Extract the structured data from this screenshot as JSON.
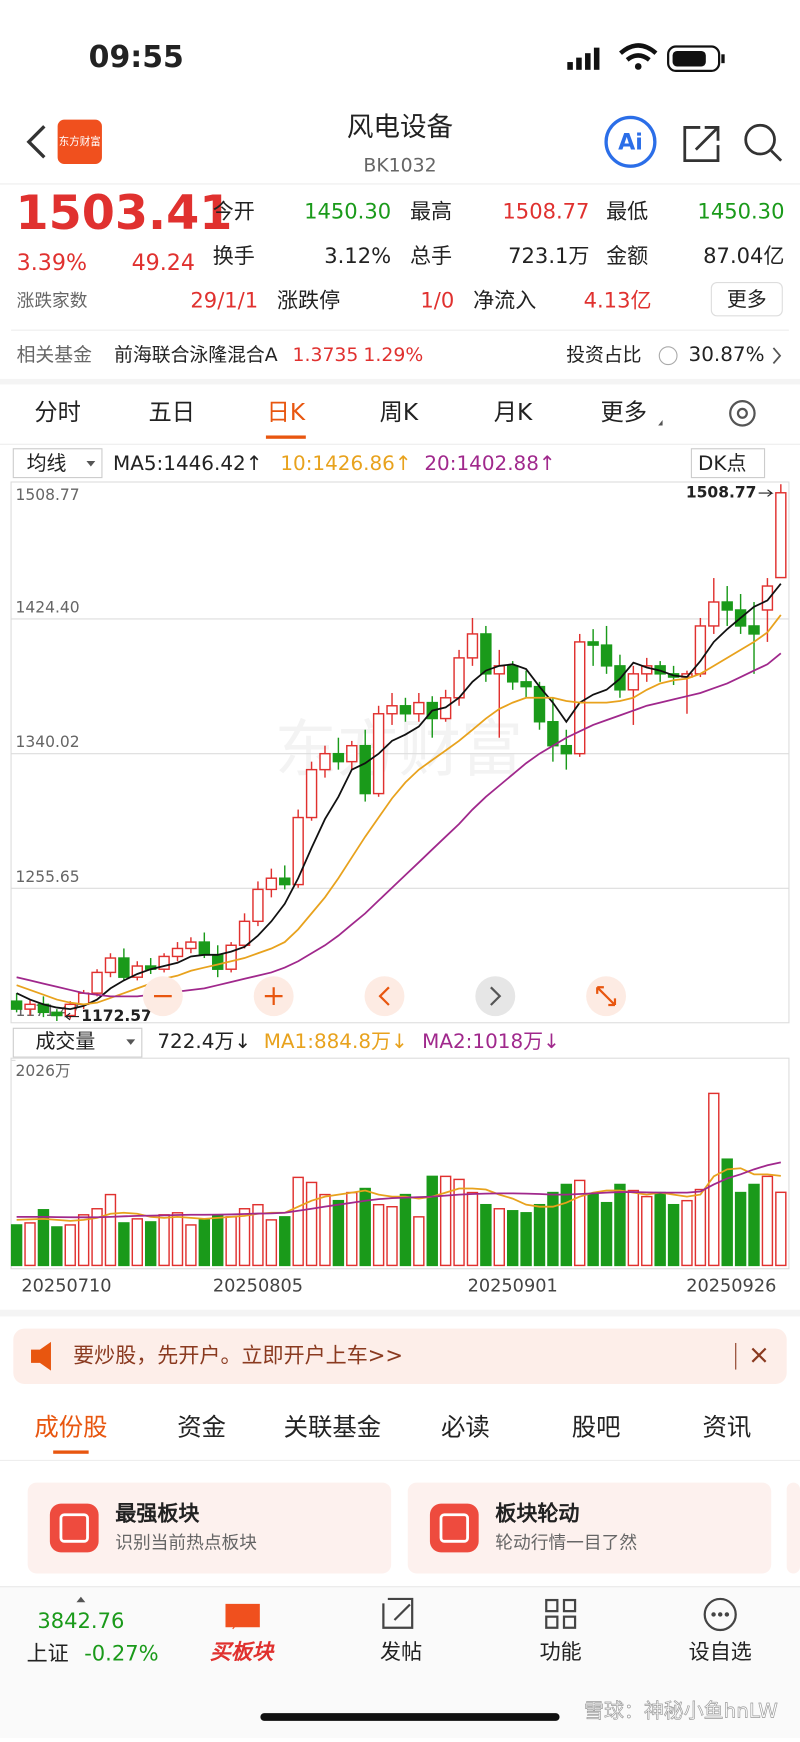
{
  "status_bar": {
    "time": "09:55"
  },
  "header": {
    "logo": "东方财富",
    "title": "风电设备",
    "code": "BK1032",
    "ai": "Ai"
  },
  "quote": {
    "price": "1503.41",
    "change_pct": "3.39%",
    "change": "49.24",
    "fields": [
      {
        "label": "今开",
        "value": "1450.30"
      },
      {
        "label": "最高",
        "value": "1508.77"
      },
      {
        "label": "最低",
        "value": "1450.30"
      },
      {
        "label": "换手",
        "value": "3.12%"
      },
      {
        "label": "总手",
        "value": "723.1万"
      },
      {
        "label": "金额",
        "value": "87.04亿"
      }
    ],
    "breadth_label": "涨跌家数",
    "breadth": "29/1/1",
    "limit_label": "涨跌停",
    "limit": "1/0",
    "flow_label": "净流入",
    "flow": "4.13亿",
    "more": "更多"
  },
  "fund": {
    "label": "相关基金",
    "name": "前海联合泳隆混合A",
    "nav": "1.3735",
    "pct": "1.29%",
    "ratio_label": "投资占比",
    "ratio": "30.87%"
  },
  "period_tabs": [
    "分时",
    "五日",
    "日K",
    "周K",
    "月K",
    "更多"
  ],
  "chart_data": [
    {
      "type": "candlestick",
      "selector": "均线",
      "indicator": "DK点",
      "ma_labels": [
        "MA5:1446.42↑",
        "10:1426.86↑",
        "20:1402.88↑"
      ],
      "categories": [
        "20250710",
        null,
        null,
        null,
        null,
        null,
        null,
        null,
        null,
        null,
        null,
        null,
        null,
        null,
        null,
        null,
        null,
        null,
        "20250805",
        null,
        null,
        null,
        null,
        null,
        null,
        null,
        null,
        null,
        null,
        null,
        null,
        null,
        null,
        null,
        null,
        null,
        null,
        "20250901",
        null,
        null,
        null,
        null,
        null,
        null,
        null,
        null,
        null,
        null,
        null,
        null,
        null,
        null,
        null,
        null,
        null,
        null,
        "20250926",
        null
      ],
      "candles": [
        [
          1185,
          1190,
          1178,
          1180
        ],
        [
          1180,
          1186,
          1176,
          1183
        ],
        [
          1183,
          1188,
          1175,
          1178
        ],
        [
          1178,
          1180,
          1172.57,
          1176
        ],
        [
          1176,
          1185,
          1174,
          1183
        ],
        [
          1183,
          1192,
          1180,
          1190
        ],
        [
          1190,
          1205,
          1188,
          1203
        ],
        [
          1203,
          1215,
          1200,
          1212
        ],
        [
          1212,
          1218,
          1198,
          1200
        ],
        [
          1200,
          1210,
          1198,
          1207
        ],
        [
          1207,
          1212,
          1202,
          1205
        ],
        [
          1205,
          1215,
          1203,
          1213
        ],
        [
          1213,
          1222,
          1210,
          1218
        ],
        [
          1218,
          1225,
          1215,
          1222
        ],
        [
          1222,
          1228,
          1212,
          1214
        ],
        [
          1214,
          1220,
          1200,
          1205
        ],
        [
          1205,
          1222,
          1203,
          1220
        ],
        [
          1220,
          1240,
          1218,
          1235
        ],
        [
          1235,
          1260,
          1232,
          1255
        ],
        [
          1255,
          1268,
          1250,
          1262
        ],
        [
          1262,
          1270,
          1255,
          1258
        ],
        [
          1258,
          1305,
          1256,
          1300
        ],
        [
          1300,
          1335,
          1298,
          1330
        ],
        [
          1330,
          1345,
          1325,
          1340
        ],
        [
          1340,
          1350,
          1330,
          1335
        ],
        [
          1335,
          1348,
          1330,
          1345
        ],
        [
          1345,
          1355,
          1310,
          1315
        ],
        [
          1315,
          1370,
          1313,
          1365
        ],
        [
          1365,
          1378,
          1358,
          1370
        ],
        [
          1370,
          1375,
          1360,
          1365
        ],
        [
          1365,
          1378,
          1360,
          1372
        ],
        [
          1372,
          1376,
          1350,
          1362
        ],
        [
          1362,
          1380,
          1360,
          1375
        ],
        [
          1375,
          1405,
          1370,
          1400
        ],
        [
          1400,
          1425,
          1395,
          1415
        ],
        [
          1415,
          1420,
          1385,
          1390
        ],
        [
          1390,
          1405,
          1350,
          1395
        ],
        [
          1395,
          1398,
          1380,
          1385
        ],
        [
          1385,
          1392,
          1375,
          1382
        ],
        [
          1382,
          1385,
          1355,
          1360
        ],
        [
          1360,
          1375,
          1335,
          1345
        ],
        [
          1345,
          1355,
          1330,
          1340
        ],
        [
          1340,
          1415,
          1338,
          1410
        ],
        [
          1410,
          1418,
          1395,
          1408
        ],
        [
          1408,
          1420,
          1390,
          1395
        ],
        [
          1395,
          1402,
          1375,
          1380
        ],
        [
          1380,
          1395,
          1358,
          1390
        ],
        [
          1390,
          1400,
          1385,
          1395
        ],
        [
          1395,
          1398,
          1385,
          1390
        ],
        [
          1390,
          1395,
          1383,
          1388
        ],
        [
          1388,
          1392,
          1365,
          1390
        ],
        [
          1390,
          1425,
          1388,
          1420
        ],
        [
          1420,
          1450,
          1415,
          1435
        ],
        [
          1435,
          1445,
          1420,
          1430
        ],
        [
          1430,
          1440,
          1415,
          1420
        ],
        [
          1420,
          1435,
          1390,
          1415
        ],
        [
          1430,
          1450,
          1410,
          1445
        ],
        [
          1450.3,
          1508.77,
          1450.3,
          1503.41
        ]
      ],
      "series": [
        {
          "name": "MA5",
          "color": "#111111",
          "values": [
            1190,
            1186,
            1183,
            1181,
            1180,
            1182,
            1186,
            1193,
            1198,
            1202,
            1205,
            1207,
            1209,
            1213,
            1214,
            1214,
            1216,
            1219,
            1226,
            1235,
            1246,
            1262,
            1281,
            1299,
            1313,
            1330,
            1334,
            1340,
            1348,
            1352,
            1357,
            1367,
            1369,
            1375,
            1385,
            1392,
            1395,
            1396,
            1393,
            1382,
            1372,
            1360,
            1372,
            1377,
            1380,
            1387,
            1397,
            1394,
            1392,
            1389,
            1388,
            1398,
            1410,
            1418,
            1425,
            1432,
            1436,
            1446.42
          ]
        },
        {
          "name": "MA10",
          "color": "#e8a21d",
          "values": [
            1195,
            1192,
            1189,
            1186,
            1184,
            1183,
            1184,
            1187,
            1190,
            1193,
            1196,
            1199,
            1201,
            1204,
            1206,
            1208,
            1210,
            1212,
            1215,
            1218,
            1222,
            1230,
            1240,
            1250,
            1262,
            1275,
            1288,
            1300,
            1312,
            1322,
            1330,
            1336,
            1342,
            1348,
            1355,
            1362,
            1368,
            1372,
            1375,
            1375,
            1375,
            1373,
            1372,
            1372,
            1372,
            1373,
            1375,
            1380,
            1384,
            1386,
            1387,
            1390,
            1395,
            1400,
            1405,
            1410,
            1416,
            1426.86
          ]
        },
        {
          "name": "MA20",
          "color": "#a0288c",
          "values": [
            1200,
            1198,
            1196,
            1194,
            1192,
            1190,
            1189,
            1188,
            1188,
            1188,
            1189,
            1190,
            1191,
            1192,
            1193,
            1195,
            1197,
            1199,
            1201,
            1203,
            1206,
            1210,
            1215,
            1220,
            1226,
            1233,
            1240,
            1248,
            1256,
            1264,
            1272,
            1280,
            1288,
            1296,
            1305,
            1313,
            1320,
            1327,
            1334,
            1340,
            1345,
            1350,
            1354,
            1358,
            1361,
            1364,
            1367,
            1370,
            1372,
            1374,
            1376,
            1378,
            1381,
            1384,
            1388,
            1392,
            1396,
            1402.88
          ]
        }
      ],
      "up_color": "#e0312f",
      "down_color": "#1a9a1a",
      "ylim": [
        1171.47,
        1508.77
      ],
      "yticks": [
        1171.47,
        1255.65,
        1340.02,
        {
          "value": 1424.4,
          "label": "1424.40"
        },
        1508.77
      ],
      "grid": true,
      "max_label": 1508.77,
      "min_label": 1172.57
    },
    {
      "type": "bar",
      "selector": "成交量",
      "legend": [
        "722.4万↓",
        "MA1:884.8万↓",
        "MA2:1018万↓"
      ],
      "values": [
        400,
        420,
        550,
        380,
        400,
        500,
        560,
        700,
        420,
        460,
        430,
        500,
        520,
        400,
        450,
        500,
        480,
        560,
        600,
        450,
        480,
        870,
        820,
        700,
        640,
        720,
        760,
        600,
        580,
        700,
        480,
        880,
        880,
        850,
        720,
        600,
        560,
        540,
        520,
        600,
        720,
        800,
        840,
        700,
        620,
        800,
        740,
        680,
        720,
        600,
        640,
        750,
        1700,
        1050,
        720,
        800,
        880,
        722.4
      ],
      "series": [
        {
          "name": "MA1",
          "color": "#e8a21d",
          "values": [
            450,
            455,
            460,
            450,
            440,
            450,
            470,
            510,
            520,
            510,
            480,
            470,
            480,
            470,
            460,
            470,
            480,
            490,
            510,
            520,
            520,
            580,
            640,
            680,
            700,
            720,
            740,
            700,
            680,
            680,
            660,
            680,
            720,
            760,
            760,
            750,
            700,
            660,
            600,
            580,
            580,
            620,
            680,
            720,
            740,
            740,
            720,
            700,
            720,
            700,
            680,
            700,
            880,
            950,
            960,
            900,
            900,
            884.8
          ]
        },
        {
          "name": "MA2",
          "color": "#a0288c",
          "values": [
            480,
            480,
            480,
            478,
            476,
            475,
            476,
            480,
            485,
            490,
            492,
            495,
            498,
            500,
            500,
            502,
            504,
            508,
            512,
            515,
            520,
            540,
            560,
            580,
            600,
            620,
            640,
            655,
            665,
            670,
            675,
            680,
            690,
            700,
            705,
            710,
            712,
            712,
            710,
            705,
            700,
            700,
            705,
            712,
            720,
            725,
            725,
            722,
            720,
            720,
            720,
            730,
            800,
            860,
            900,
            950,
            990,
            1018
          ]
        }
      ],
      "ylim": [
        0,
        2026
      ],
      "yticks": [
        {
          "value": 2026,
          "label": "2026万"
        }
      ]
    }
  ],
  "banner": {
    "text": "要炒股，先开户。立即开户上车>>"
  },
  "content_tabs": [
    "成份股",
    "资金",
    "关联基金",
    "必读",
    "股吧",
    "资讯"
  ],
  "cards": [
    {
      "title": "最强板块",
      "subtitle": "识别当前热点板块"
    },
    {
      "title": "板块轮动",
      "subtitle": "轮动行情一目了然"
    }
  ],
  "bottom_nav": {
    "index_value": "3842.76",
    "index_name": "上证",
    "index_pct": "-0.27%",
    "items": [
      "买板块",
      "发帖",
      "功能",
      "设自选"
    ]
  },
  "watermark": "雪球：神秘小鱼hnLW"
}
